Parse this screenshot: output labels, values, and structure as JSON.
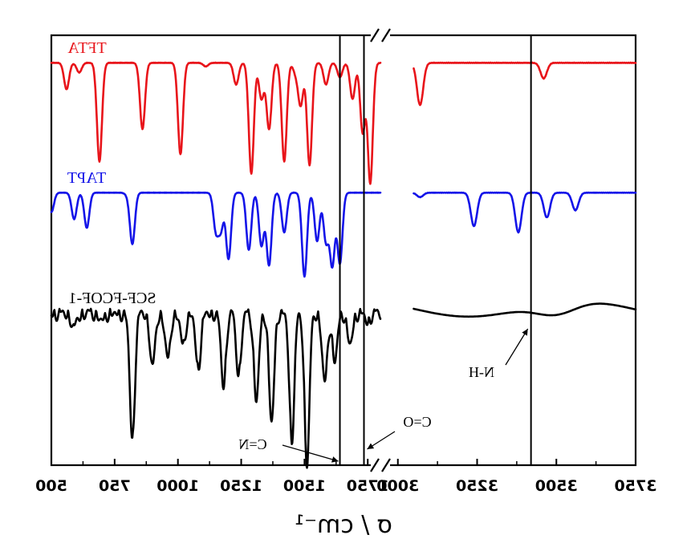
{
  "chart_data": {
    "type": "line",
    "xlabel": "σ / cm⁻¹",
    "x_ticks": [
      500,
      750,
      1000,
      1250,
      1500,
      1750,
      3000,
      3250,
      3500,
      3750
    ],
    "x_range": [
      500,
      3750
    ],
    "x_break": [
      1800,
      2950
    ],
    "x_reversed_display": true,
    "grid": false,
    "series": [
      {
        "name": "TFTA",
        "color": "#e8141a",
        "baseline": 1.0,
        "peaks": [
          [
            560,
            0.22
          ],
          [
            610,
            0.08
          ],
          [
            690,
            0.82
          ],
          [
            860,
            0.55
          ],
          [
            1010,
            0.76
          ],
          [
            1110,
            0.03
          ],
          [
            1230,
            0.18
          ],
          [
            1290,
            0.92
          ],
          [
            1330,
            0.3
          ],
          [
            1360,
            0.55
          ],
          [
            1420,
            0.82
          ],
          [
            1465,
            0.08
          ],
          [
            1485,
            0.35
          ],
          [
            1520,
            0.85
          ],
          [
            1585,
            0.18
          ],
          [
            1640,
            0.12
          ],
          [
            1690,
            0.3
          ],
          [
            1730,
            0.58
          ],
          [
            1760,
            1.0
          ],
          [
            3070,
            0.35
          ],
          [
            3460,
            0.13
          ]
        ]
      },
      {
        "name": "TAPT",
        "color": "#1414e8",
        "baseline": 1.0,
        "peaks": [
          [
            500,
            0.22
          ],
          [
            590,
            0.3
          ],
          [
            640,
            0.4
          ],
          [
            800,
            0.02
          ],
          [
            820,
            0.58
          ],
          [
            1150,
            0.42
          ],
          [
            1170,
            0.4
          ],
          [
            1200,
            0.75
          ],
          [
            1280,
            0.65
          ],
          [
            1330,
            0.6
          ],
          [
            1360,
            0.82
          ],
          [
            1420,
            0.45
          ],
          [
            1500,
            0.95
          ],
          [
            1550,
            0.55
          ],
          [
            1585,
            0.55
          ],
          [
            1610,
            0.82
          ],
          [
            1640,
            0.8
          ],
          [
            3070,
            0.05
          ],
          [
            3240,
            0.38
          ],
          [
            3380,
            0.45
          ],
          [
            3470,
            0.28
          ],
          [
            3560,
            0.2
          ]
        ]
      },
      {
        "name": "SCF-FCOF-1",
        "color": "#000000",
        "baseline": 0.78,
        "peaks": [
          [
            590,
            0.1
          ],
          [
            700,
            0.05
          ],
          [
            820,
            0.8
          ],
          [
            900,
            0.35
          ],
          [
            960,
            0.3
          ],
          [
            1020,
            0.2
          ],
          [
            1080,
            0.35
          ],
          [
            1180,
            0.45
          ],
          [
            1240,
            0.38
          ],
          [
            1310,
            0.55
          ],
          [
            1370,
            0.7
          ],
          [
            1450,
            0.8
          ],
          [
            1510,
            0.95
          ],
          [
            1580,
            0.45
          ],
          [
            1620,
            0.3
          ],
          [
            1680,
            0.2
          ],
          [
            1750,
            0.05
          ],
          [
            3500,
            0.08
          ]
        ]
      }
    ],
    "annotations": [
      {
        "label": "C=N",
        "position": 1640
      },
      {
        "label": "C=O",
        "position": 1735
      },
      {
        "label": "N-H",
        "position": 3420
      }
    ]
  }
}
